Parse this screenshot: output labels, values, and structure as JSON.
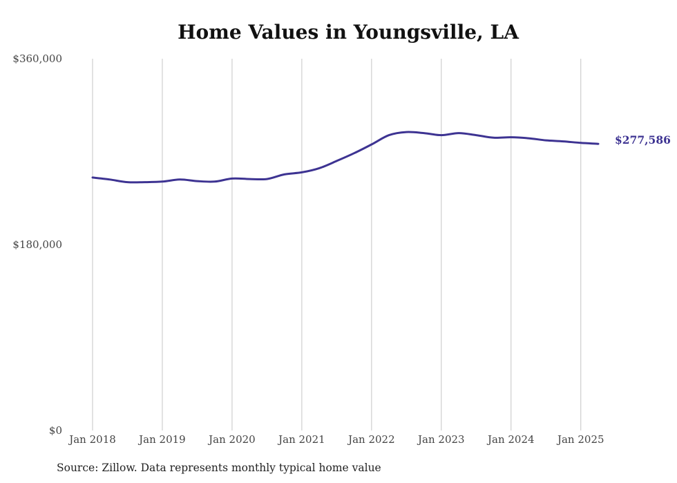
{
  "chart_data": {
    "type": "line",
    "title": "Home Values in Youngsville, LA",
    "source": "Source: Zillow. Data represents monthly typical home value",
    "ylim": [
      0,
      360000
    ],
    "xlim": [
      "2018-01",
      "2025-04"
    ],
    "y_ticks": [
      {
        "value": 0,
        "label": "$0"
      },
      {
        "value": 180000,
        "label": "$180,000"
      },
      {
        "value": 360000,
        "label": "$360,000"
      }
    ],
    "x_ticks": [
      {
        "value": "2018-01",
        "label": "Jan 2018"
      },
      {
        "value": "2019-01",
        "label": "Jan 2019"
      },
      {
        "value": "2020-01",
        "label": "Jan 2020"
      },
      {
        "value": "2021-01",
        "label": "Jan 2021"
      },
      {
        "value": "2022-01",
        "label": "Jan 2022"
      },
      {
        "value": "2023-01",
        "label": "Jan 2023"
      },
      {
        "value": "2024-01",
        "label": "Jan 2024"
      },
      {
        "value": "2025-01",
        "label": "Jan 2025"
      }
    ],
    "grid": "vertical",
    "line_color": "#3d3392",
    "end_label": "$277,586",
    "series": [
      {
        "x": [
          "2018-01",
          "2018-04",
          "2018-07",
          "2018-10",
          "2019-01",
          "2019-04",
          "2019-07",
          "2019-10",
          "2020-01",
          "2020-04",
          "2020-07",
          "2020-10",
          "2021-01",
          "2021-04",
          "2021-07",
          "2021-10",
          "2022-01",
          "2022-04",
          "2022-07",
          "2022-10",
          "2023-01",
          "2023-04",
          "2023-07",
          "2023-10",
          "2024-01",
          "2024-04",
          "2024-07",
          "2024-10",
          "2025-01",
          "2025-04"
        ],
        "y": [
          245000,
          243000,
          240500,
          240500,
          241000,
          243000,
          241500,
          241000,
          244000,
          243500,
          243500,
          248000,
          250000,
          254000,
          261000,
          268500,
          277000,
          286000,
          289000,
          288000,
          286000,
          288000,
          286000,
          283500,
          284000,
          283000,
          281000,
          280000,
          278500,
          277586
        ]
      }
    ]
  }
}
